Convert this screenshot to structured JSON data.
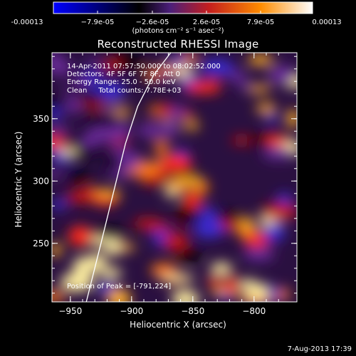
{
  "colorbar": {
    "tick_labels": [
      "-0.00013",
      "−7.9e-05",
      "−2.6e-05",
      "2.6e-05",
      "7.9e-05",
      "0.00013"
    ],
    "unit": "(photons cm⁻² s⁻¹ asec⁻²)",
    "range": [
      -0.00013,
      0.00013
    ],
    "colors": [
      "#0000ff",
      "#000000",
      "#5a2a8a",
      "#c41e1e",
      "#ff8c00",
      "#ffffff"
    ]
  },
  "title": "Reconstructed RHESSI Image",
  "info": {
    "line1": "14-Apr-2011 07:57:50.000 to 08:02:52.000",
    "line2": "Detectors: 4F 5F 6F 7F 8F, Att 0",
    "line3": "Energy Range: 25.0 - 50.0 keV",
    "line4": "Clean     Total counts: 7.78E+03"
  },
  "peak_text": "Position of Peak = [-791,224]",
  "chart_data": {
    "type": "heatmap",
    "title": "Reconstructed RHESSI Image",
    "xlabel": "Heliocentric X (arcsec)",
    "ylabel": "Heliocentric Y (arcsec)",
    "xlim": [
      -965,
      -765
    ],
    "ylim": [
      203,
      403
    ],
    "x_ticks": [
      -950,
      -900,
      -850,
      -800
    ],
    "y_ticks": [
      250,
      300,
      350
    ],
    "x_tick_labels": [
      "−950",
      "−900",
      "−850",
      "−800"
    ],
    "y_tick_labels": [
      "250",
      "300",
      "350"
    ],
    "limb_curve": [
      [
        -937,
        203
      ],
      [
        -925,
        250
      ],
      [
        -915,
        290
      ],
      [
        -905,
        330
      ],
      [
        -895,
        360
      ],
      [
        -882,
        385
      ],
      [
        -868,
        403
      ]
    ],
    "peak": [
      -791,
      224
    ]
  },
  "footer": "7-Aug-2013 17:39"
}
